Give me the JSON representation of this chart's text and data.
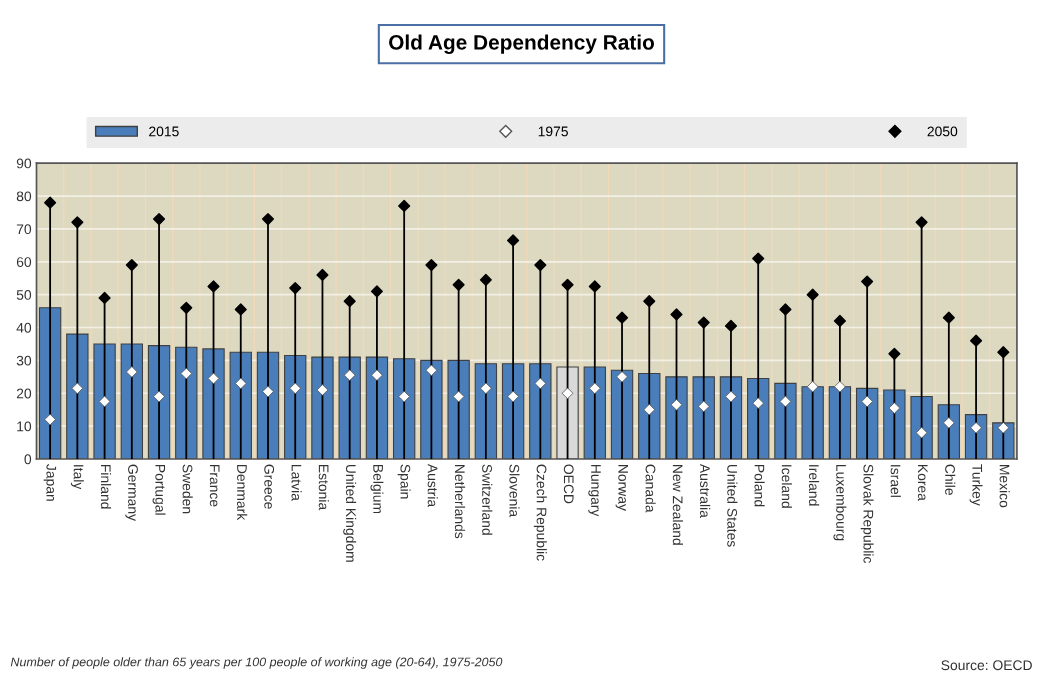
{
  "chart_data": {
    "type": "bar",
    "title": "Old Age Dependency Ratio",
    "categories": [
      "Japan",
      "Italy",
      "Finland",
      "Germany",
      "Portugal",
      "Sweden",
      "France",
      "Denmark",
      "Greece",
      "Latvia",
      "Estonia",
      "United Kingdom",
      "Belgium",
      "Spain",
      "Austria",
      "Netherlands",
      "Switzerland",
      "Slovenia",
      "Czech Republic",
      "OECD",
      "Hungary",
      "Norway",
      "Canada",
      "New Zealand",
      "Australia",
      "United States",
      "Poland",
      "Iceland",
      "Ireland",
      "Luxembourg",
      "Slovak Republic",
      "Israel",
      "Korea",
      "Chile",
      "Turkey",
      "Mexico"
    ],
    "series": [
      {
        "name": "2015",
        "color": "#4a7ebb",
        "colors": [
          "#4a7ebb",
          "#4a7ebb",
          "#4a7ebb",
          "#4a7ebb",
          "#4a7ebb",
          "#4a7ebb",
          "#4a7ebb",
          "#4a7ebb",
          "#4a7ebb",
          "#4a7ebb",
          "#4a7ebb",
          "#4a7ebb",
          "#4a7ebb",
          "#4a7ebb",
          "#4a7ebb",
          "#4a7ebb",
          "#4a7ebb",
          "#4a7ebb",
          "#4a7ebb",
          "#d9d9d9",
          "#4a7ebb",
          "#4a7ebb",
          "#4a7ebb",
          "#4a7ebb",
          "#4a7ebb",
          "#4a7ebb",
          "#4a7ebb",
          "#4a7ebb",
          "#4a7ebb",
          "#4a7ebb",
          "#4a7ebb",
          "#4a7ebb",
          "#4a7ebb",
          "#4a7ebb",
          "#4a7ebb",
          "#4a7ebb"
        ],
        "values": [
          46,
          38,
          35,
          35,
          34.5,
          34,
          33.5,
          32.5,
          32.5,
          31.5,
          31,
          31,
          31,
          30.5,
          30,
          30,
          29,
          29,
          29,
          28,
          28,
          27,
          26,
          25,
          25,
          25,
          24.5,
          23,
          22,
          22,
          21.5,
          21,
          19,
          16.5,
          13.5,
          11
        ]
      },
      {
        "name": "1975",
        "type": "scatter",
        "color": "#ffffff",
        "marker": "diamond",
        "values": [
          12,
          21.5,
          17.5,
          26.5,
          19,
          26,
          24.5,
          23,
          20.5,
          21.5,
          21,
          25.5,
          25.5,
          19,
          27,
          19,
          21.5,
          19,
          23,
          20,
          21.5,
          25,
          15,
          16.5,
          16,
          19,
          17,
          17.5,
          22,
          22,
          17.5,
          15.5,
          8,
          11,
          9.5,
          9.5
        ]
      },
      {
        "name": "2050",
        "type": "lollipop",
        "color": "#000000",
        "marker": "diamond",
        "values": [
          78,
          72,
          49,
          59,
          73,
          46,
          52.5,
          45.5,
          73,
          52,
          56,
          48,
          51,
          77,
          59,
          53,
          54.5,
          66.5,
          59,
          53,
          52.5,
          43,
          48,
          44,
          41.5,
          40.5,
          61,
          45.5,
          50,
          42,
          54,
          32,
          72,
          43,
          36,
          32.5
        ]
      }
    ],
    "ylim": [
      0,
      90
    ],
    "yticks": [
      0,
      10,
      20,
      30,
      40,
      50,
      60,
      70,
      80,
      90
    ],
    "grid": true,
    "legend": "top",
    "annotations": [
      "Number of people older than 65 years per 100 people of working age (20-64), 1975-2050",
      "Source: OECD"
    ]
  }
}
